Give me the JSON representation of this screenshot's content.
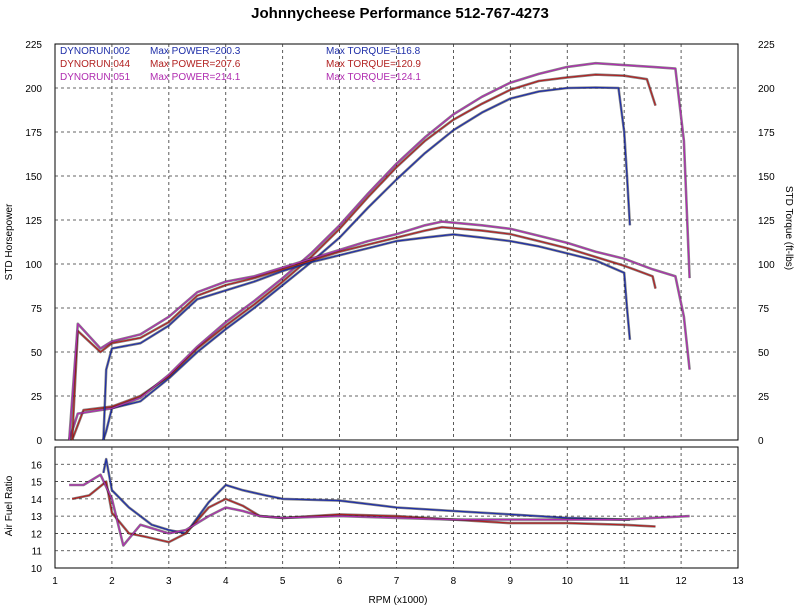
{
  "chart_data": [
    {
      "type": "line",
      "title": "Johnnycheese Performance 512-767-4273",
      "xlabel": "",
      "ylabel": "STD Horsepower",
      "y2label": "STD Torque (ft-lbs)",
      "xlim": [
        1,
        13
      ],
      "ylim": [
        0,
        225
      ],
      "grid": true,
      "y_ticks": [
        "0",
        "25",
        "50",
        "75",
        "100",
        "125",
        "150",
        "175",
        "200",
        "225"
      ],
      "legend": [
        {
          "run": "DYNORUN.002",
          "power": "Max POWER=200.3",
          "torque": "Max TORQUE=116.8",
          "color": "#1f2fa8"
        },
        {
          "run": "DYNORUN.044",
          "power": "Max POWER=207.6",
          "torque": "Max TORQUE=120.9",
          "color": "#b22222"
        },
        {
          "run": "DYNORUN.051",
          "power": "Max POWER=214.1",
          "torque": "Max TORQUE=124.1",
          "color": "#b02cb0"
        }
      ],
      "series": [
        {
          "name": "DYNORUN.002 Power",
          "color": "#1f2fa8",
          "x": [
            1.85,
            1.9,
            2.0,
            2.5,
            3.0,
            3.5,
            4.0,
            4.5,
            5.0,
            5.5,
            6.0,
            6.5,
            7.0,
            7.5,
            8.0,
            8.5,
            9.0,
            9.5,
            10.0,
            10.5,
            10.9,
            11.0,
            11.05,
            11.1
          ],
          "y": [
            0,
            5,
            18,
            22,
            35,
            50,
            63,
            75,
            88,
            101,
            115,
            132,
            148,
            163,
            176,
            186,
            194,
            198,
            200,
            200.3,
            200,
            175,
            150,
            122
          ]
        },
        {
          "name": "DYNORUN.044 Power",
          "color": "#b22222",
          "x": [
            1.3,
            1.5,
            2.0,
            2.5,
            3.0,
            3.5,
            4.0,
            4.5,
            5.0,
            5.5,
            6.0,
            6.5,
            7.0,
            7.5,
            8.0,
            8.5,
            9.0,
            9.5,
            10.0,
            10.5,
            11.0,
            11.4,
            11.55
          ],
          "y": [
            0,
            17,
            19,
            25,
            36,
            52,
            65,
            77,
            90,
            104,
            120,
            138,
            155,
            170,
            182,
            191,
            199,
            204,
            206,
            207.6,
            207,
            205,
            190
          ]
        },
        {
          "name": "DYNORUN.051 Power",
          "color": "#b02cb0",
          "x": [
            1.25,
            1.4,
            2.0,
            2.5,
            3.0,
            3.5,
            4.0,
            4.5,
            5.0,
            5.5,
            6.0,
            6.5,
            7.0,
            7.5,
            8.0,
            8.5,
            9.0,
            9.5,
            10.0,
            10.5,
            11.0,
            11.5,
            11.9,
            12.05,
            12.15
          ],
          "y": [
            0,
            15,
            18,
            24,
            37,
            53,
            67,
            79,
            92,
            106,
            122,
            140,
            157,
            172,
            185,
            195,
            203,
            208,
            212,
            214.1,
            213,
            212,
            211,
            170,
            92
          ]
        },
        {
          "name": "DYNORUN.002 Torque",
          "color": "#1f2fa8",
          "x": [
            1.85,
            1.9,
            2.0,
            2.5,
            3.0,
            3.5,
            4.0,
            4.5,
            5.0,
            5.5,
            6.0,
            6.5,
            7.0,
            7.5,
            8.0,
            8.5,
            9.0,
            9.5,
            10.0,
            10.5,
            11.0,
            11.05,
            11.1
          ],
          "y": [
            0,
            40,
            52,
            55,
            65,
            80,
            85,
            90,
            96,
            101,
            105,
            109,
            113,
            115,
            116.8,
            115,
            113,
            110,
            106,
            102,
            95,
            75,
            57
          ]
        },
        {
          "name": "DYNORUN.044 Torque",
          "color": "#b22222",
          "x": [
            1.3,
            1.4,
            1.8,
            2.0,
            2.5,
            3.0,
            3.5,
            4.0,
            4.5,
            5.0,
            5.5,
            6.0,
            6.5,
            7.0,
            7.5,
            7.8,
            8.5,
            9.0,
            9.5,
            10.0,
            10.5,
            11.0,
            11.5,
            11.55
          ],
          "y": [
            0,
            62,
            50,
            55,
            58,
            67,
            82,
            88,
            92,
            97,
            102,
            107,
            111,
            115,
            119,
            120.9,
            119,
            117,
            113,
            109,
            104,
            99,
            93,
            86
          ]
        },
        {
          "name": "DYNORUN.051 Torque",
          "color": "#b02cb0",
          "x": [
            1.25,
            1.4,
            1.8,
            2.0,
            2.5,
            3.0,
            3.5,
            4.0,
            4.5,
            5.0,
            5.5,
            6.0,
            6.5,
            7.0,
            7.5,
            7.8,
            8.5,
            9.0,
            9.5,
            10.0,
            10.5,
            11.0,
            11.5,
            11.9,
            12.05,
            12.15
          ],
          "y": [
            0,
            66,
            52,
            56,
            60,
            70,
            84,
            90,
            93,
            98,
            103,
            108,
            113,
            117,
            122,
            124.1,
            122,
            120,
            116,
            112,
            107,
            103,
            97,
            93,
            70,
            40
          ]
        }
      ]
    },
    {
      "type": "line",
      "title": "",
      "xlabel": "RPM (x1000)",
      "ylabel": "Air Fuel Ratio",
      "xlim": [
        1,
        13
      ],
      "ylim": [
        10,
        17
      ],
      "grid": true,
      "x_ticks": [
        "1",
        "2",
        "3",
        "4",
        "5",
        "6",
        "7",
        "8",
        "9",
        "10",
        "11",
        "12",
        "13"
      ],
      "y_ticks": [
        "10",
        "11",
        "12",
        "13",
        "14",
        "15",
        "16"
      ],
      "series": [
        {
          "name": "DYNORUN.002 AFR",
          "color": "#1f2fa8",
          "x": [
            1.85,
            1.9,
            2.0,
            2.3,
            2.7,
            3.0,
            3.3,
            3.7,
            4.0,
            4.3,
            4.7,
            5.0,
            6.0,
            7.0,
            8.0,
            9.0,
            10.0,
            11.0,
            11.1
          ],
          "y": [
            15.5,
            16.3,
            14.5,
            13.5,
            12.5,
            12.2,
            12.0,
            13.8,
            14.8,
            14.5,
            14.2,
            14.0,
            13.9,
            13.5,
            13.3,
            13.1,
            12.9,
            12.8,
            12.8
          ]
        },
        {
          "name": "DYNORUN.044 AFR",
          "color": "#b22222",
          "x": [
            1.3,
            1.6,
            1.9,
            2.0,
            2.3,
            2.6,
            3.0,
            3.3,
            3.7,
            4.0,
            4.3,
            4.6,
            5.0,
            6.0,
            7.0,
            8.0,
            9.0,
            10.0,
            11.0,
            11.55
          ],
          "y": [
            14.0,
            14.2,
            15.0,
            13.2,
            12.0,
            11.8,
            11.5,
            12.0,
            13.5,
            14.0,
            13.6,
            13.0,
            12.9,
            13.1,
            13.0,
            12.8,
            12.6,
            12.6,
            12.5,
            12.4
          ]
        },
        {
          "name": "DYNORUN.051 AFR",
          "color": "#b02cb0",
          "x": [
            1.25,
            1.5,
            1.8,
            2.0,
            2.2,
            2.5,
            3.0,
            3.3,
            3.7,
            4.0,
            4.3,
            4.6,
            5.0,
            6.0,
            7.0,
            8.0,
            9.0,
            10.0,
            11.0,
            11.5,
            12.15
          ],
          "y": [
            14.8,
            14.8,
            15.4,
            14.0,
            11.3,
            12.5,
            12.0,
            12.2,
            13.0,
            13.5,
            13.3,
            13.0,
            12.9,
            13.0,
            12.9,
            12.8,
            12.8,
            12.8,
            12.8,
            12.9,
            13.0
          ]
        }
      ]
    }
  ]
}
